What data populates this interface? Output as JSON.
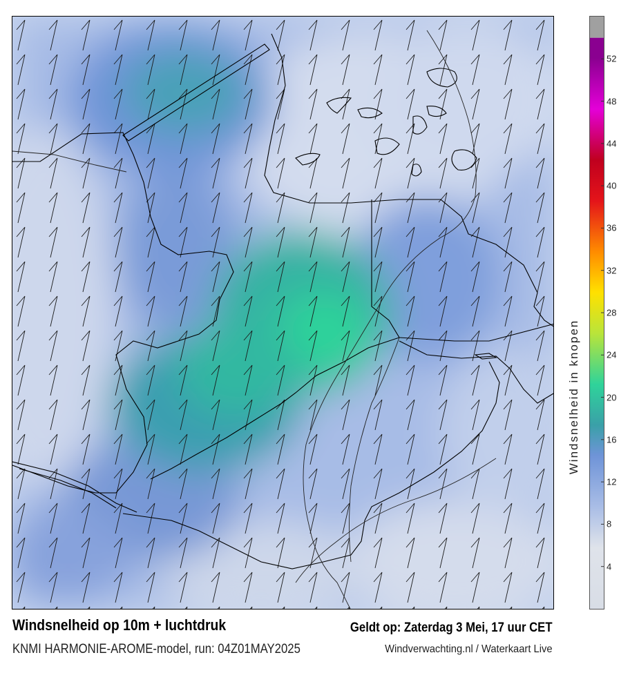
{
  "title": "Windsnelheid op 10m + luchtdruk",
  "subtitle": "KNMI HARMONIE-AROME-model, run: 04Z01MAY2025",
  "valid_time": "Geldt op: Zaterdag 3 Mei, 17 uur CET",
  "source": "Windverwachting.nl / Waterkaart Live",
  "colorbar": {
    "title": "Windsnelheid in knopen",
    "ticks": [
      "4",
      "8",
      "12",
      "16",
      "20",
      "24",
      "28",
      "32",
      "36",
      "40",
      "44",
      "48",
      "52"
    ],
    "range": [
      0,
      56
    ],
    "colors": {
      "low": "#d8dde6",
      "mid_low": "#a9bde6",
      "mid": "#6f94d8",
      "teal": "#3aa0a8",
      "green": "#2fd39a",
      "yellow_green": "#b9e43a",
      "yellow": "#ffe100",
      "orange": "#ff8c00",
      "red": "#e4141a",
      "dark_red": "#c0001e",
      "magenta": "#e400d8",
      "purple": "#8a0090",
      "gray_top": "#a0a0a0"
    }
  },
  "map": {
    "layer": "wind speed 10m with wind barbs and pressure isobars",
    "colors": {
      "background": "#c9d6ee",
      "land_border": "#000000"
    }
  }
}
